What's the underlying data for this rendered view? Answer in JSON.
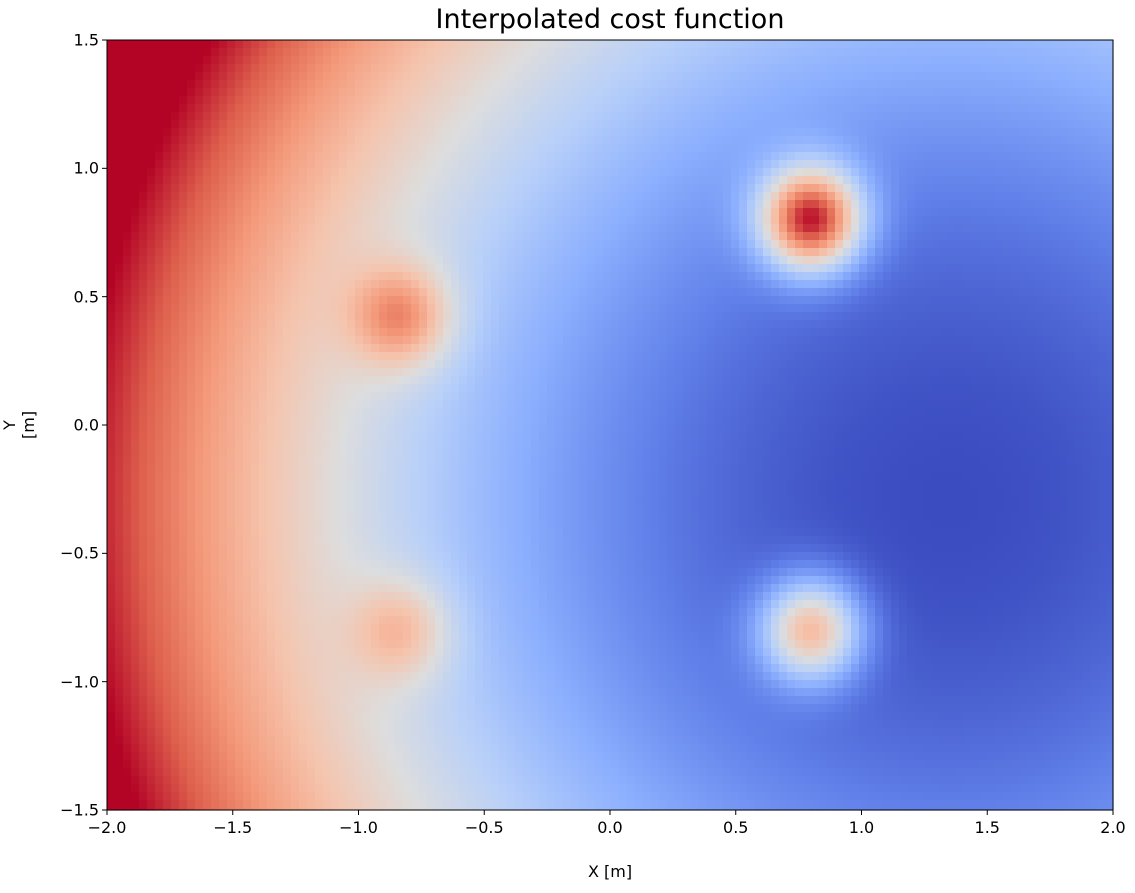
{
  "chart_data": {
    "type": "heatmap",
    "title": "Interpolated cost function",
    "xlabel": "X [m]",
    "ylabel": "Y [m]",
    "xlim": [
      -2.0,
      2.0
    ],
    "ylim": [
      -1.5,
      1.5
    ],
    "xticks": [
      -2.0,
      -1.5,
      -1.0,
      -0.5,
      0.0,
      0.5,
      1.0,
      1.5,
      2.0
    ],
    "xtick_labels": [
      "−2.0",
      "−1.5",
      "−1.0",
      "−0.5",
      "0.0",
      "0.5",
      "1.0",
      "1.5",
      "2.0"
    ],
    "yticks": [
      1.5,
      1.0,
      0.5,
      0.0,
      -0.5,
      -1.0,
      -1.5
    ],
    "ytick_labels": [
      "1.5",
      "1.0",
      "0.5",
      "0.0",
      "−0.5",
      "−1.0",
      "−1.5"
    ],
    "colormap": "coolwarm",
    "grid": false,
    "field": {
      "background_minimum": {
        "x": 1.35,
        "y": -0.3
      },
      "background_scale": 3.35,
      "peaks": [
        {
          "x": 0.8,
          "y": 0.8,
          "amplitude": 0.85,
          "sigma": 0.14
        },
        {
          "x": -0.83,
          "y": 0.42,
          "amplitude": 0.35,
          "sigma": 0.14
        },
        {
          "x": -0.83,
          "y": -0.8,
          "amplitude": 0.24,
          "sigma": 0.14
        },
        {
          "x": 0.8,
          "y": -0.8,
          "amplitude": 0.6,
          "sigma": 0.14
        }
      ]
    }
  }
}
